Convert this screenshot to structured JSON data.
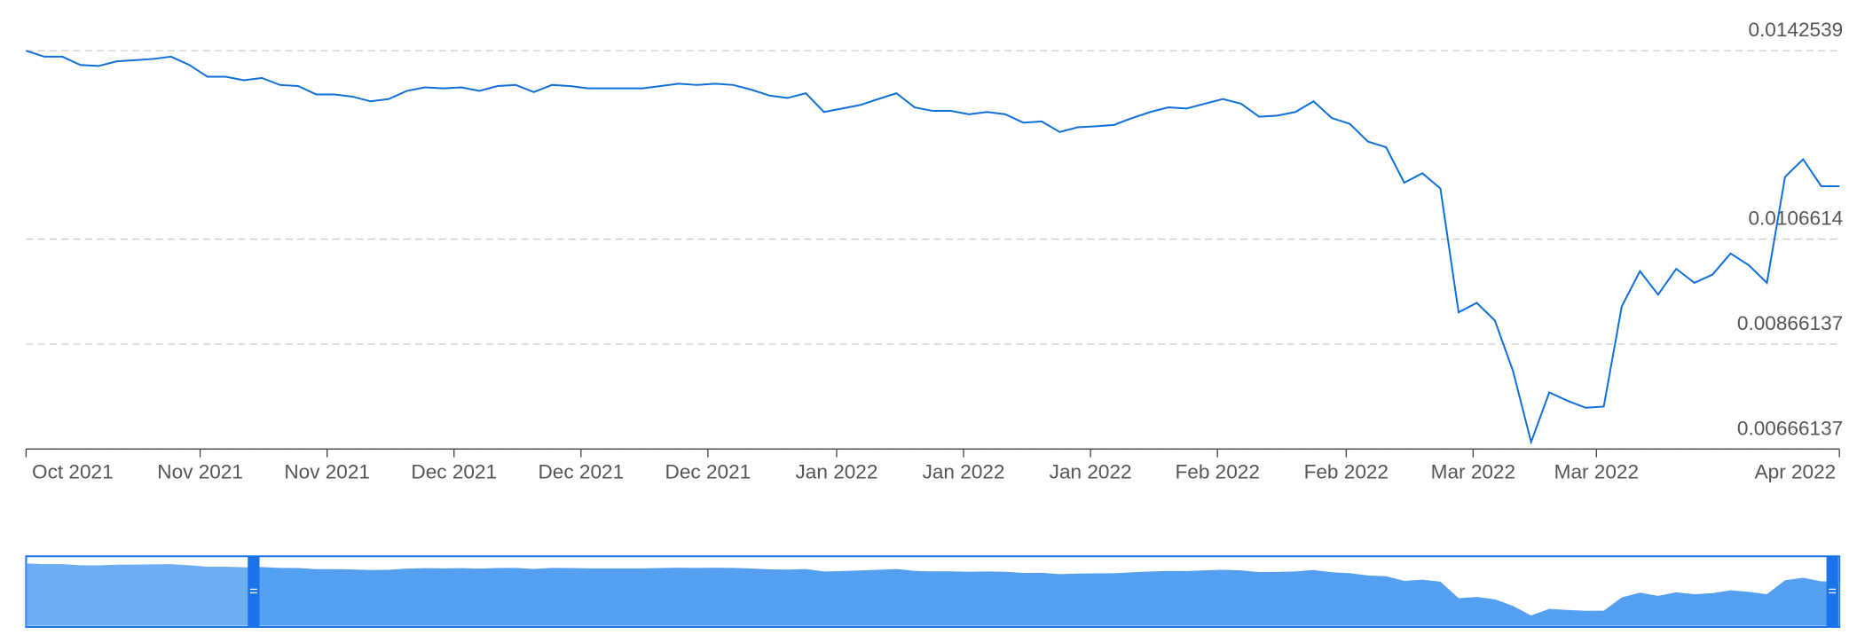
{
  "chart_data": {
    "type": "line",
    "series": [
      {
        "color": "#0f6fd9",
        "values": [
          0.014254,
          0.01414,
          0.01414,
          0.013983,
          0.013961,
          0.014051,
          0.014073,
          0.014096,
          0.01414,
          0.013983,
          0.013758,
          0.013758,
          0.013691,
          0.013736,
          0.013601,
          0.013579,
          0.013421,
          0.013421,
          0.013377,
          0.013287,
          0.013332,
          0.013489,
          0.013556,
          0.013534,
          0.013556,
          0.013489,
          0.013579,
          0.013601,
          0.013466,
          0.013601,
          0.013579,
          0.013534,
          0.013534,
          0.013534,
          0.013534,
          0.013579,
          0.013624,
          0.013601,
          0.013624,
          0.013601,
          0.013511,
          0.013399,
          0.013354,
          0.013444,
          0.013085,
          0.013152,
          0.013219,
          0.013332,
          0.013444,
          0.013174,
          0.013107,
          0.013107,
          0.01304,
          0.013085,
          0.01304,
          0.012882,
          0.012905,
          0.012703,
          0.012793,
          0.012815,
          0.012838,
          0.012972,
          0.013085,
          0.013174,
          0.013152,
          0.013242,
          0.013332,
          0.013242,
          0.012995,
          0.013017,
          0.013085,
          0.013287,
          0.012972,
          0.01286,
          0.012523,
          0.012411,
          0.011737,
          0.011917,
          0.011625,
          0.009266,
          0.009446,
          0.009109,
          0.008143,
          0.006796,
          0.007739,
          0.007582,
          0.007447,
          0.00747,
          0.009379,
          0.010052,
          0.009603,
          0.010097,
          0.009828,
          0.009985,
          0.010389,
          0.010165,
          0.009828,
          0.011849,
          0.012186,
          0.01167,
          0.01167
        ]
      }
    ],
    "ylim": [
      0.00666137,
      0.0142539
    ],
    "yticks": [
      0.00666137,
      0.00866137,
      0.0106614,
      0.0142539
    ],
    "xlim": [
      0,
      100
    ],
    "xticks": [
      {
        "value": 0,
        "label": "Oct 2021"
      },
      {
        "value": 9.6,
        "label": "Nov 2021"
      },
      {
        "value": 16.6,
        "label": "Nov 2021"
      },
      {
        "value": 23.6,
        "label": "Dec 2021"
      },
      {
        "value": 30.6,
        "label": "Dec 2021"
      },
      {
        "value": 37.6,
        "label": "Dec 2021"
      },
      {
        "value": 44.7,
        "label": "Jan 2022"
      },
      {
        "value": 51.7,
        "label": "Jan 2022"
      },
      {
        "value": 58.7,
        "label": "Jan 2022"
      },
      {
        "value": 65.7,
        "label": "Feb 2022"
      },
      {
        "value": 72.8,
        "label": "Feb 2022"
      },
      {
        "value": 79.8,
        "label": "Mar 2022"
      },
      {
        "value": 86.6,
        "label": "Mar 2022"
      },
      {
        "value": 100,
        "label": "Apr 2022"
      }
    ],
    "grid": true
  }
}
